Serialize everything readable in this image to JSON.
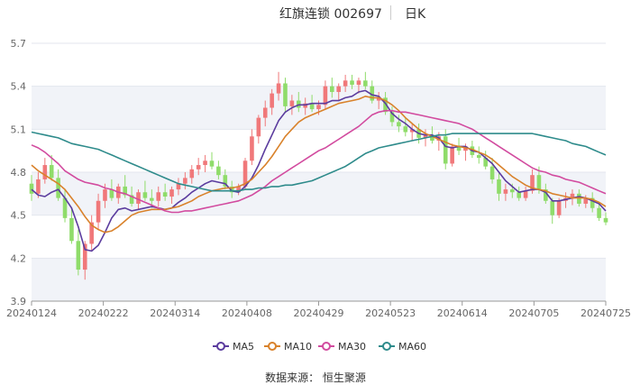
{
  "title": {
    "name": "红旗连锁 002697",
    "period": "日K"
  },
  "source": "数据来源： 恒生聚源",
  "colors": {
    "up": "#f0787a",
    "down": "#8fdc6a",
    "ma5": "#5b3c9e",
    "ma10": "#d9822b",
    "ma30": "#d24b9f",
    "ma60": "#2e8b8b",
    "band": "#f1f3f8",
    "grid": "#e3e6ee",
    "axis": "#666666"
  },
  "chart_data": {
    "type": "candlestick",
    "title": "红旗连锁 002697",
    "ylim": [
      3.9,
      5.7
    ],
    "yticks": [
      "3.9",
      "4.2",
      "4.5",
      "4.8",
      "5.1",
      "5.4",
      "5.7"
    ],
    "xticks": [
      {
        "label": "20240124",
        "pos": 0
      },
      {
        "label": "20240222",
        "pos": 0.125
      },
      {
        "label": "20240314",
        "pos": 0.25
      },
      {
        "label": "20240408",
        "pos": 0.375
      },
      {
        "label": "20240429",
        "pos": 0.5
      },
      {
        "label": "20240523",
        "pos": 0.625
      },
      {
        "label": "20240614",
        "pos": 0.75
      },
      {
        "label": "20240705",
        "pos": 0.875
      },
      {
        "label": "20240725",
        "pos": 1
      }
    ],
    "legend": [
      {
        "key": "ma5",
        "label": "MA5"
      },
      {
        "key": "ma10",
        "label": "MA10"
      },
      {
        "key": "ma30",
        "label": "MA30"
      },
      {
        "key": "ma60",
        "label": "MA60"
      }
    ],
    "ohlc": [
      [
        4.72,
        4.78,
        4.6,
        4.65
      ],
      [
        4.65,
        4.8,
        4.62,
        4.75
      ],
      [
        4.75,
        4.9,
        4.72,
        4.85
      ],
      [
        4.85,
        4.92,
        4.74,
        4.76
      ],
      [
        4.76,
        4.82,
        4.6,
        4.62
      ],
      [
        4.62,
        4.68,
        4.45,
        4.48
      ],
      [
        4.48,
        4.55,
        4.3,
        4.32
      ],
      [
        4.32,
        4.4,
        4.08,
        4.12
      ],
      [
        4.12,
        4.32,
        4.05,
        4.3
      ],
      [
        4.3,
        4.5,
        4.25,
        4.45
      ],
      [
        4.45,
        4.65,
        4.4,
        4.6
      ],
      [
        4.6,
        4.72,
        4.55,
        4.68
      ],
      [
        4.68,
        4.75,
        4.6,
        4.62
      ],
      [
        4.62,
        4.72,
        4.58,
        4.7
      ],
      [
        4.7,
        4.78,
        4.62,
        4.64
      ],
      [
        4.64,
        4.7,
        4.56,
        4.58
      ],
      [
        4.58,
        4.68,
        4.54,
        4.66
      ],
      [
        4.66,
        4.74,
        4.6,
        4.62
      ],
      [
        4.62,
        4.68,
        4.55,
        4.6
      ],
      [
        4.6,
        4.7,
        4.56,
        4.66
      ],
      [
        4.66,
        4.72,
        4.6,
        4.63
      ],
      [
        4.63,
        4.7,
        4.58,
        4.68
      ],
      [
        4.68,
        4.76,
        4.64,
        4.72
      ],
      [
        4.72,
        4.8,
        4.68,
        4.76
      ],
      [
        4.76,
        4.85,
        4.72,
        4.82
      ],
      [
        4.82,
        4.9,
        4.78,
        4.85
      ],
      [
        4.85,
        4.92,
        4.8,
        4.88
      ],
      [
        4.88,
        4.94,
        4.82,
        4.84
      ],
      [
        4.84,
        4.88,
        4.75,
        4.78
      ],
      [
        4.78,
        4.82,
        4.68,
        4.7
      ],
      [
        4.7,
        4.74,
        4.62,
        4.66
      ],
      [
        4.66,
        4.72,
        4.64,
        4.7
      ],
      [
        4.7,
        4.9,
        4.68,
        4.88
      ],
      [
        4.88,
        5.1,
        4.85,
        5.05
      ],
      [
        5.05,
        5.2,
        5.0,
        5.18
      ],
      [
        5.18,
        5.3,
        5.12,
        5.25
      ],
      [
        5.25,
        5.38,
        5.2,
        5.35
      ],
      [
        5.35,
        5.5,
        5.3,
        5.42
      ],
      [
        5.42,
        5.46,
        5.22,
        5.26
      ],
      [
        5.26,
        5.34,
        5.2,
        5.3
      ],
      [
        5.3,
        5.36,
        5.22,
        5.25
      ],
      [
        5.25,
        5.32,
        5.2,
        5.28
      ],
      [
        5.28,
        5.34,
        5.22,
        5.24
      ],
      [
        5.24,
        5.3,
        5.2,
        5.27
      ],
      [
        5.27,
        5.44,
        5.24,
        5.4
      ],
      [
        5.4,
        5.46,
        5.32,
        5.36
      ],
      [
        5.36,
        5.42,
        5.3,
        5.4
      ],
      [
        5.4,
        5.48,
        5.36,
        5.44
      ],
      [
        5.44,
        5.48,
        5.38,
        5.41
      ],
      [
        5.41,
        5.46,
        5.35,
        5.44
      ],
      [
        5.44,
        5.5,
        5.38,
        5.4
      ],
      [
        5.4,
        5.44,
        5.28,
        5.3
      ],
      [
        5.3,
        5.36,
        5.24,
        5.32
      ],
      [
        5.32,
        5.36,
        5.2,
        5.22
      ],
      [
        5.22,
        5.26,
        5.12,
        5.15
      ],
      [
        5.15,
        5.2,
        5.08,
        5.12
      ],
      [
        5.12,
        5.18,
        5.05,
        5.08
      ],
      [
        5.08,
        5.14,
        5.02,
        5.1
      ],
      [
        5.1,
        5.14,
        5.0,
        5.04
      ],
      [
        5.04,
        5.1,
        4.98,
        5.06
      ],
      [
        5.06,
        5.12,
        5.0,
        5.02
      ],
      [
        5.02,
        5.08,
        4.95,
        5.05
      ],
      [
        5.05,
        5.1,
        4.82,
        4.86
      ],
      [
        4.86,
        5.0,
        4.84,
        4.98
      ],
      [
        4.98,
        5.04,
        4.92,
        4.95
      ],
      [
        4.95,
        5.0,
        4.88,
        4.98
      ],
      [
        4.98,
        5.02,
        4.9,
        4.92
      ],
      [
        4.92,
        4.98,
        4.86,
        4.9
      ],
      [
        4.9,
        4.95,
        4.82,
        4.84
      ],
      [
        4.84,
        4.9,
        4.72,
        4.75
      ],
      [
        4.75,
        4.8,
        4.6,
        4.65
      ],
      [
        4.65,
        4.72,
        4.6,
        4.68
      ],
      [
        4.68,
        4.72,
        4.62,
        4.66
      ],
      [
        4.66,
        4.7,
        4.6,
        4.62
      ],
      [
        4.62,
        4.7,
        4.6,
        4.67
      ],
      [
        4.67,
        4.82,
        4.65,
        4.78
      ],
      [
        4.78,
        4.84,
        4.65,
        4.68
      ],
      [
        4.68,
        4.72,
        4.58,
        4.6
      ],
      [
        4.6,
        4.62,
        4.44,
        4.5
      ],
      [
        4.5,
        4.62,
        4.48,
        4.6
      ],
      [
        4.6,
        4.66,
        4.55,
        4.62
      ],
      [
        4.62,
        4.68,
        4.57,
        4.65
      ],
      [
        4.65,
        4.68,
        4.56,
        4.58
      ],
      [
        4.58,
        4.64,
        4.55,
        4.62
      ],
      [
        4.62,
        4.66,
        4.52,
        4.55
      ],
      [
        4.55,
        4.58,
        4.46,
        4.48
      ],
      [
        4.48,
        4.52,
        4.43,
        4.45
      ]
    ],
    "series": [
      {
        "key": "ma5",
        "name": "MA5",
        "values": [
          4.68,
          4.64,
          4.63,
          4.66,
          4.68,
          4.62,
          4.55,
          4.42,
          4.26,
          4.25,
          4.29,
          4.38,
          4.48,
          4.54,
          4.55,
          4.53,
          4.54,
          4.55,
          4.56,
          4.55,
          4.54,
          4.55,
          4.59,
          4.62,
          4.66,
          4.69,
          4.72,
          4.74,
          4.73,
          4.72,
          4.67,
          4.66,
          4.7,
          4.76,
          4.85,
          4.96,
          5.06,
          5.16,
          5.22,
          5.25,
          5.27,
          5.27,
          5.28,
          5.28,
          5.28,
          5.3,
          5.3,
          5.32,
          5.33,
          5.36,
          5.37,
          5.34,
          5.33,
          5.28,
          5.21,
          5.17,
          5.14,
          5.1,
          5.07,
          5.06,
          5.06,
          5.04,
          4.98,
          4.97,
          4.98,
          4.98,
          4.95,
          4.94,
          4.9,
          4.86,
          4.8,
          4.74,
          4.7,
          4.66,
          4.67,
          4.68,
          4.68,
          4.66,
          4.6,
          4.6,
          4.61,
          4.62,
          4.63,
          4.62,
          4.6,
          4.58,
          4.53
        ]
      },
      {
        "key": "ma10",
        "name": "MA10",
        "values": [
          4.85,
          4.81,
          4.78,
          4.75,
          4.72,
          4.68,
          4.62,
          4.56,
          4.49,
          4.43,
          4.4,
          4.38,
          4.39,
          4.42,
          4.46,
          4.5,
          4.52,
          4.53,
          4.54,
          4.54,
          4.54,
          4.55,
          4.56,
          4.58,
          4.6,
          4.63,
          4.65,
          4.67,
          4.68,
          4.69,
          4.69,
          4.7,
          4.72,
          4.75,
          4.8,
          4.85,
          4.91,
          4.98,
          5.05,
          5.1,
          5.15,
          5.18,
          5.2,
          5.22,
          5.24,
          5.26,
          5.28,
          5.29,
          5.3,
          5.31,
          5.33,
          5.32,
          5.32,
          5.3,
          5.27,
          5.23,
          5.18,
          5.14,
          5.1,
          5.07,
          5.05,
          5.03,
          5.01,
          4.99,
          4.98,
          4.97,
          4.96,
          4.94,
          4.92,
          4.89,
          4.85,
          4.81,
          4.77,
          4.74,
          4.71,
          4.69,
          4.68,
          4.67,
          4.65,
          4.64,
          4.63,
          4.62,
          4.62,
          4.62,
          4.61,
          4.59,
          4.56
        ]
      },
      {
        "key": "ma30",
        "name": "MA30",
        "values": [
          4.99,
          4.97,
          4.94,
          4.9,
          4.86,
          4.81,
          4.78,
          4.75,
          4.73,
          4.72,
          4.71,
          4.69,
          4.68,
          4.66,
          4.65,
          4.63,
          4.61,
          4.59,
          4.57,
          4.55,
          4.53,
          4.52,
          4.52,
          4.53,
          4.53,
          4.54,
          4.55,
          4.56,
          4.57,
          4.58,
          4.59,
          4.6,
          4.62,
          4.64,
          4.67,
          4.7,
          4.74,
          4.77,
          4.8,
          4.83,
          4.86,
          4.89,
          4.92,
          4.95,
          4.97,
          5.0,
          5.03,
          5.06,
          5.09,
          5.12,
          5.16,
          5.2,
          5.22,
          5.23,
          5.23,
          5.22,
          5.22,
          5.21,
          5.2,
          5.19,
          5.18,
          5.17,
          5.16,
          5.15,
          5.14,
          5.12,
          5.1,
          5.07,
          5.04,
          5.01,
          4.98,
          4.95,
          4.92,
          4.89,
          4.86,
          4.83,
          4.81,
          4.8,
          4.78,
          4.77,
          4.75,
          4.74,
          4.73,
          4.71,
          4.69,
          4.67,
          4.65
        ]
      },
      {
        "key": "ma60",
        "name": "MA60",
        "values": [
          5.08,
          5.07,
          5.06,
          5.05,
          5.04,
          5.02,
          5.0,
          4.99,
          4.98,
          4.97,
          4.96,
          4.94,
          4.92,
          4.9,
          4.88,
          4.86,
          4.84,
          4.82,
          4.8,
          4.78,
          4.76,
          4.74,
          4.72,
          4.71,
          4.7,
          4.69,
          4.68,
          4.67,
          4.67,
          4.67,
          4.67,
          4.67,
          4.68,
          4.68,
          4.69,
          4.69,
          4.7,
          4.7,
          4.71,
          4.71,
          4.72,
          4.73,
          4.74,
          4.76,
          4.78,
          4.8,
          4.82,
          4.84,
          4.87,
          4.9,
          4.93,
          4.95,
          4.97,
          4.98,
          4.99,
          5.0,
          5.01,
          5.02,
          5.03,
          5.04,
          5.05,
          5.06,
          5.06,
          5.07,
          5.07,
          5.07,
          5.07,
          5.07,
          5.07,
          5.07,
          5.07,
          5.07,
          5.07,
          5.07,
          5.07,
          5.07,
          5.06,
          5.05,
          5.04,
          5.03,
          5.02,
          5.0,
          4.99,
          4.98,
          4.96,
          4.94,
          4.92
        ]
      }
    ]
  }
}
